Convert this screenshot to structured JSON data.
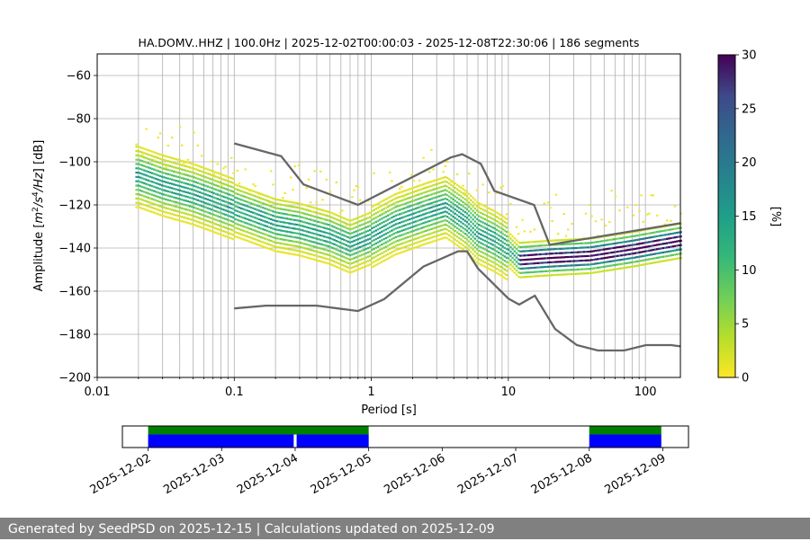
{
  "chart_data": [
    {
      "type": "heatmap",
      "title": "HA.DOMV..HHZ | 100.0Hz | 2025-12-02T00:00:03 - 2025-12-08T22:30:06 | 186 segments",
      "xlabel": "Period [s]",
      "ylabel_parts": [
        "Amplitude [",
        "m",
        "2",
        "/",
        "s",
        "4",
        "/",
        "Hz",
        "] [dB]"
      ],
      "x_scale": "log",
      "xlim": [
        0.01,
        180
      ],
      "ylim": [
        -200,
        -50
      ],
      "x_ticks": [
        0.01,
        0.1,
        1,
        10,
        100
      ],
      "x_tick_labels": [
        "0.01",
        "0.1",
        "1",
        "10",
        "100"
      ],
      "y_ticks": [
        -200,
        -180,
        -160,
        -140,
        -120,
        -100,
        -80,
        -60
      ],
      "y_tick_labels": [
        "−200",
        "−180",
        "−160",
        "−140",
        "−120",
        "−100",
        "−80",
        "−60"
      ],
      "grid": "vertical lines at log minor ticks",
      "colorbar": {
        "label": "[%]",
        "range": [
          0,
          30
        ],
        "ticks": [
          0,
          5,
          10,
          15,
          20,
          25,
          30
        ],
        "tick_labels": [
          "0",
          "5",
          "10",
          "15",
          "20",
          "25",
          "30"
        ],
        "colormap": "viridis_r"
      },
      "psd_mode": {
        "x": [
          0.02,
          0.03,
          0.05,
          0.1,
          0.2,
          0.3,
          0.5,
          0.7,
          1.0,
          1.5,
          2.5,
          3.5,
          5.0,
          6.0,
          8.0,
          10.0,
          12.0,
          20.0,
          40.0,
          80.0,
          180.0
        ],
        "y": [
          -107,
          -111,
          -115,
          -122,
          -129,
          -131,
          -135,
          -139,
          -135,
          -129,
          -124,
          -121,
          -128,
          -133,
          -137,
          -141,
          -146,
          -145,
          -144,
          -141,
          -137
        ]
      },
      "reference_models": [
        {
          "x": [
            0.1,
            0.17,
            0.4,
            0.8,
            1.24,
            2.4,
            4.3,
            5.0,
            6.0,
            10.0,
            12.0,
            15.6,
            21.9,
            31.6,
            45.0,
            70.0,
            101.0,
            154.0,
            180.0
          ],
          "y": [
            -168,
            -166.7,
            -166.7,
            -169.2,
            -163.7,
            -148.6,
            -141.5,
            -141.5,
            -149.5,
            -163.4,
            -166.2,
            -162.1,
            -177.5,
            -185.0,
            -187.5,
            -187.5,
            -185.0,
            -185.0,
            -185.6
          ]
        },
        {
          "x": [
            0.1,
            0.22,
            0.32,
            0.8,
            3.8,
            4.6,
            6.3,
            7.9,
            15.4,
            20.0,
            180.0
          ],
          "y": [
            -91.5,
            -97.4,
            -110.5,
            -120.0,
            -98.0,
            -96.5,
            -101.0,
            -113.5,
            -120.0,
            -138.5,
            -128.5
          ]
        }
      ]
    },
    {
      "type": "timeline",
      "x_tick_labels": [
        "2025-12-02",
        "2025-12-03",
        "2025-12-04",
        "2025-12-05",
        "2025-12-06",
        "2025-12-07",
        "2025-12-08",
        "2025-12-09"
      ],
      "xlim_days": [
        -0.35,
        7.35
      ],
      "top_band_color": "#008000",
      "bottom_band_color": "#0000ff",
      "top_band": [
        [
          0.0,
          3.0
        ],
        [
          6.0,
          6.98
        ]
      ],
      "bottom_band": [
        [
          0.0,
          1.98
        ],
        [
          2.02,
          3.0
        ],
        [
          6.0,
          6.98
        ]
      ]
    }
  ],
  "footer": "Generated by SeedPSD on 2025-12-15 | Calculations updated on 2025-12-09"
}
